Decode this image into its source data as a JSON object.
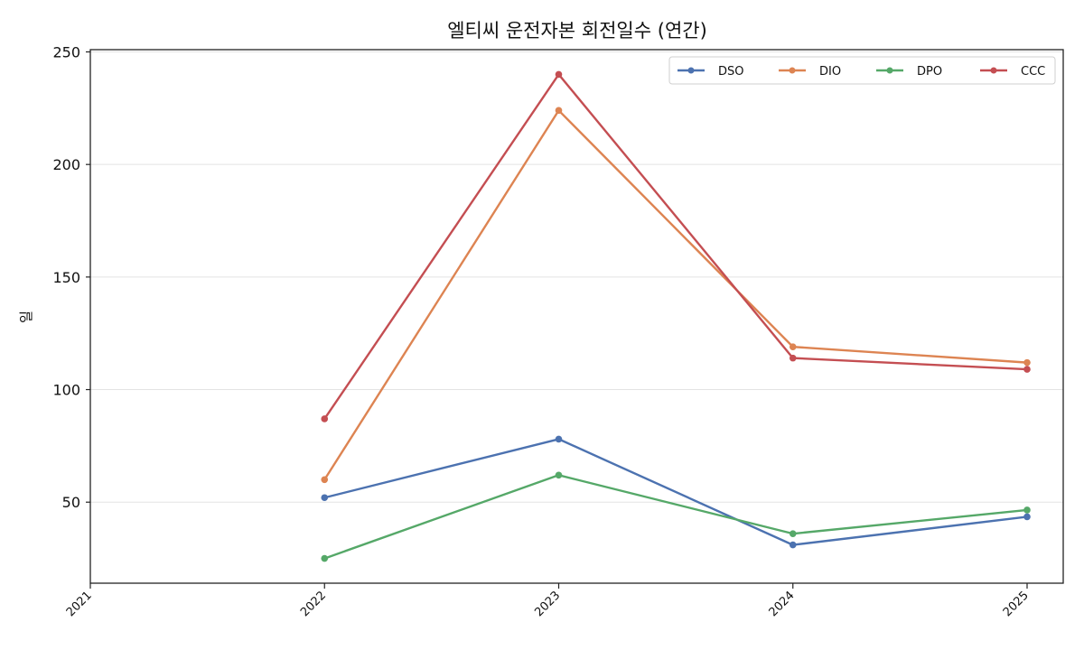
{
  "chart_data": {
    "type": "line",
    "title": "엘티씨 운전자본 회전일수 (연간)",
    "xlabel": "",
    "ylabel": "일",
    "x": [
      "2021",
      "2022",
      "2023",
      "2024",
      "2025"
    ],
    "ylim": [
      14,
      251
    ],
    "yticks": [
      50,
      100,
      150,
      200,
      250
    ],
    "grid": "horizontal",
    "legend_position": "top-right",
    "series": [
      {
        "name": "DSO",
        "color": "#4c72b0",
        "values": [
          null,
          52,
          78,
          31,
          43.5
        ]
      },
      {
        "name": "DIO",
        "color": "#dd8452",
        "values": [
          null,
          60,
          224,
          119,
          112
        ]
      },
      {
        "name": "DPO",
        "color": "#55a868",
        "values": [
          null,
          25,
          62,
          36,
          46.5
        ]
      },
      {
        "name": "CCC",
        "color": "#c44e52",
        "values": [
          null,
          87,
          240,
          114,
          109
        ]
      }
    ]
  }
}
